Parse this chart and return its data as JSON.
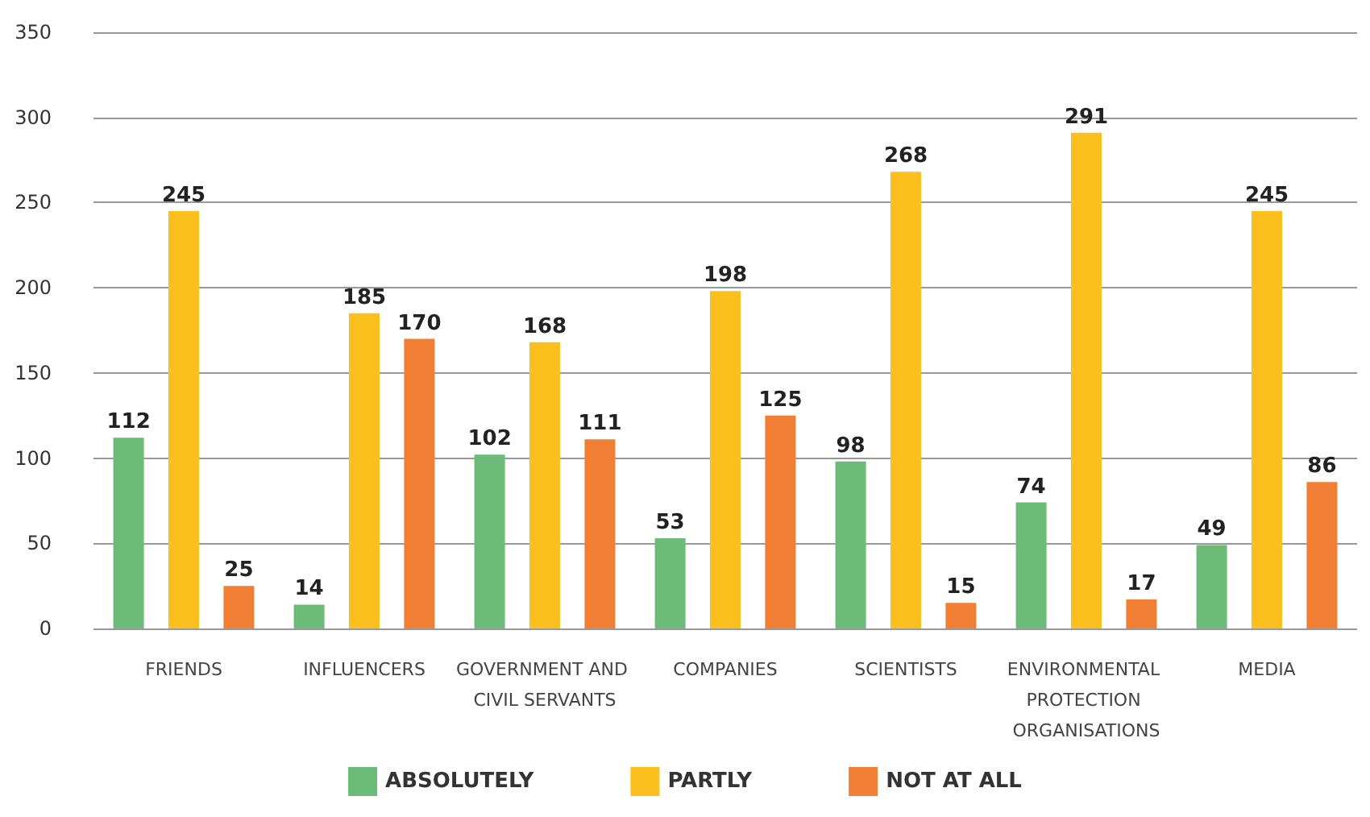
{
  "chart_data": {
    "type": "bar",
    "categories": [
      "FRIENDS",
      "INFLUENCERS",
      "GOVERNMENT AND CIVIL SERVANTS",
      "COMPANIES",
      "SCIENTISTS",
      "ENVIRONMENTAL PROTECTION ORGANISATIONS",
      "MEDIA"
    ],
    "series": [
      {
        "name": "ABSOLUTELY",
        "color": "#6dbb78",
        "values": [
          112,
          14,
          102,
          53,
          98,
          74,
          49
        ]
      },
      {
        "name": "PARTLY",
        "color": "#fbc01d",
        "values": [
          245,
          185,
          168,
          198,
          268,
          291,
          245
        ]
      },
      {
        "name": "NOT AT ALL",
        "color": "#f07f35",
        "values": [
          25,
          170,
          111,
          125,
          15,
          17,
          86
        ]
      }
    ],
    "ylim": [
      0,
      350
    ],
    "yticks": [
      0,
      50,
      100,
      150,
      200,
      250,
      300,
      350
    ],
    "grid": "y",
    "legend": "bottom",
    "data_labels": true
  }
}
